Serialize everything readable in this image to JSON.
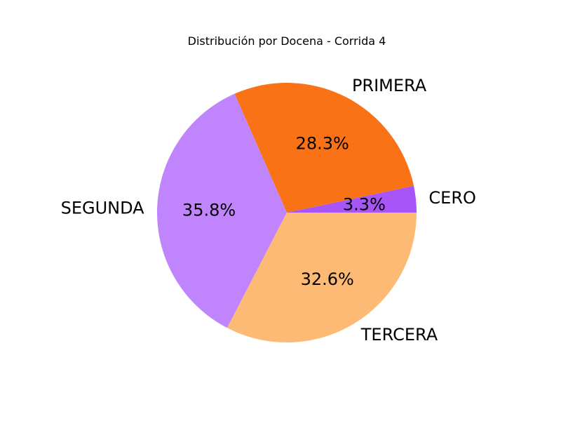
{
  "chart_data": {
    "type": "pie",
    "title": "Distribución por Docena - Corrida 4",
    "categories": [
      "CERO",
      "PRIMERA",
      "SEGUNDA",
      "TERCERA"
    ],
    "values": [
      3.3,
      28.3,
      35.8,
      32.6
    ],
    "percent_labels": [
      "3.3%",
      "28.3%",
      "35.8%",
      "32.6%"
    ],
    "colors": [
      "#a855f7",
      "#f97316",
      "#c084fc",
      "#fdba74"
    ],
    "start_angle_deg": 0,
    "direction": "counterclockwise"
  }
}
